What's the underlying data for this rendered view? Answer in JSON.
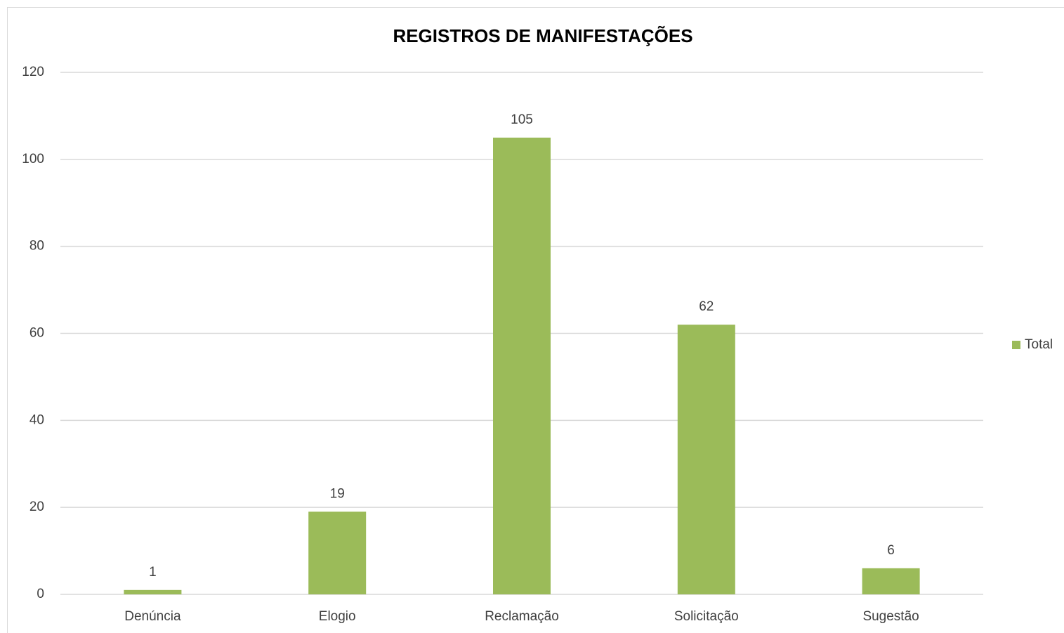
{
  "chart_data": {
    "type": "bar",
    "title": "REGISTROS DE MANIFESTAÇÕES",
    "categories": [
      "Denúncia",
      "Elogio",
      "Reclamação",
      "Solicitação",
      "Sugestão"
    ],
    "series": [
      {
        "name": "Total",
        "color": "#9bbb59",
        "values": [
          1,
          19,
          105,
          62,
          6
        ]
      }
    ],
    "ylim": [
      0,
      120
    ],
    "yticks": [
      0,
      20,
      40,
      60,
      80,
      100,
      120
    ],
    "grid": true,
    "legend": "right",
    "data_labels": true
  }
}
